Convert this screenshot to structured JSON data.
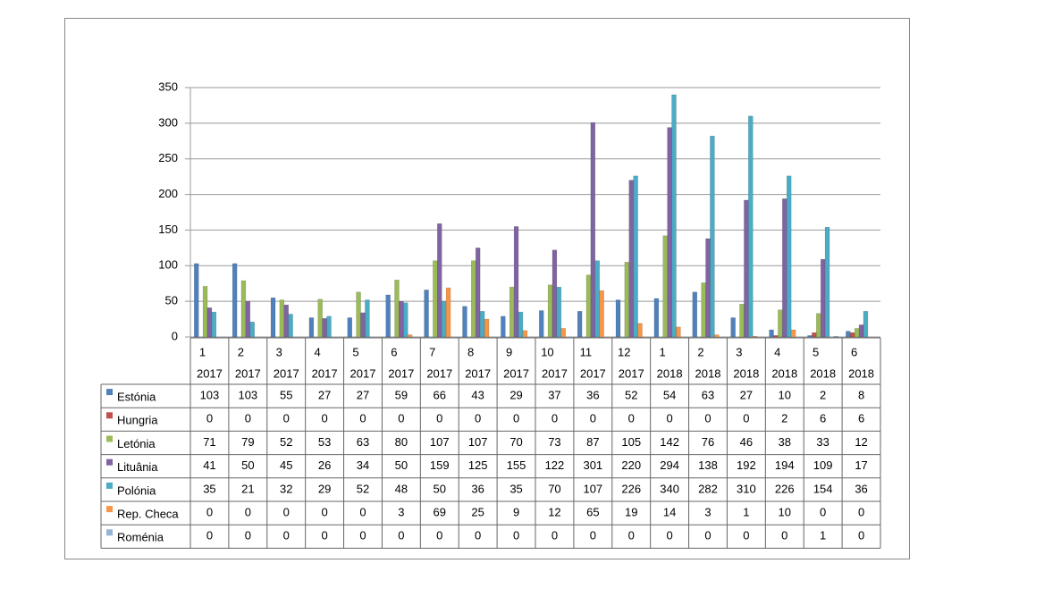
{
  "chart_data": {
    "type": "bar",
    "categories": [
      [
        "1",
        "2017"
      ],
      [
        "2",
        "2017"
      ],
      [
        "3",
        "2017"
      ],
      [
        "4",
        "2017"
      ],
      [
        "5",
        "2017"
      ],
      [
        "6",
        "2017"
      ],
      [
        "7",
        "2017"
      ],
      [
        "8",
        "2017"
      ],
      [
        "9",
        "2017"
      ],
      [
        "10",
        "2017"
      ],
      [
        "11",
        "2017"
      ],
      [
        "12",
        "2017"
      ],
      [
        "1",
        "2018"
      ],
      [
        "2",
        "2018"
      ],
      [
        "3",
        "2018"
      ],
      [
        "4",
        "2018"
      ],
      [
        "5",
        "2018"
      ],
      [
        "6",
        "2018"
      ]
    ],
    "series": [
      {
        "name": "Estónia",
        "color": "#4f81bd",
        "values": [
          103,
          103,
          55,
          27,
          27,
          59,
          66,
          43,
          29,
          37,
          36,
          52,
          54,
          63,
          27,
          10,
          2,
          8
        ]
      },
      {
        "name": "Hungria",
        "color": "#c0504d",
        "values": [
          0,
          0,
          0,
          0,
          0,
          0,
          0,
          0,
          0,
          0,
          0,
          0,
          0,
          0,
          0,
          2,
          6,
          6
        ]
      },
      {
        "name": "Letónia",
        "color": "#9bbb59",
        "values": [
          71,
          79,
          52,
          53,
          63,
          80,
          107,
          107,
          70,
          73,
          87,
          105,
          142,
          76,
          46,
          38,
          33,
          12
        ]
      },
      {
        "name": "Lituânia",
        "color": "#8064a2",
        "values": [
          41,
          50,
          45,
          26,
          34,
          50,
          159,
          125,
          155,
          122,
          301,
          220,
          294,
          138,
          192,
          194,
          109,
          17
        ]
      },
      {
        "name": "Polónia",
        "color": "#4bacc6",
        "values": [
          35,
          21,
          32,
          29,
          52,
          48,
          50,
          36,
          35,
          70,
          107,
          226,
          340,
          282,
          310,
          226,
          154,
          36
        ]
      },
      {
        "name": "Rep. Checa",
        "color": "#f79646",
        "values": [
          0,
          0,
          0,
          0,
          0,
          3,
          69,
          25,
          9,
          12,
          65,
          19,
          14,
          3,
          1,
          10,
          0,
          0
        ]
      },
      {
        "name": "Roménia",
        "color": "#95b3d7",
        "values": [
          0,
          0,
          0,
          0,
          0,
          0,
          0,
          0,
          0,
          0,
          0,
          0,
          0,
          0,
          0,
          0,
          1,
          0
        ]
      }
    ],
    "ylim": [
      0,
      350
    ],
    "yticks": [
      0,
      50,
      100,
      150,
      200,
      250,
      300,
      350
    ],
    "grid": true
  }
}
